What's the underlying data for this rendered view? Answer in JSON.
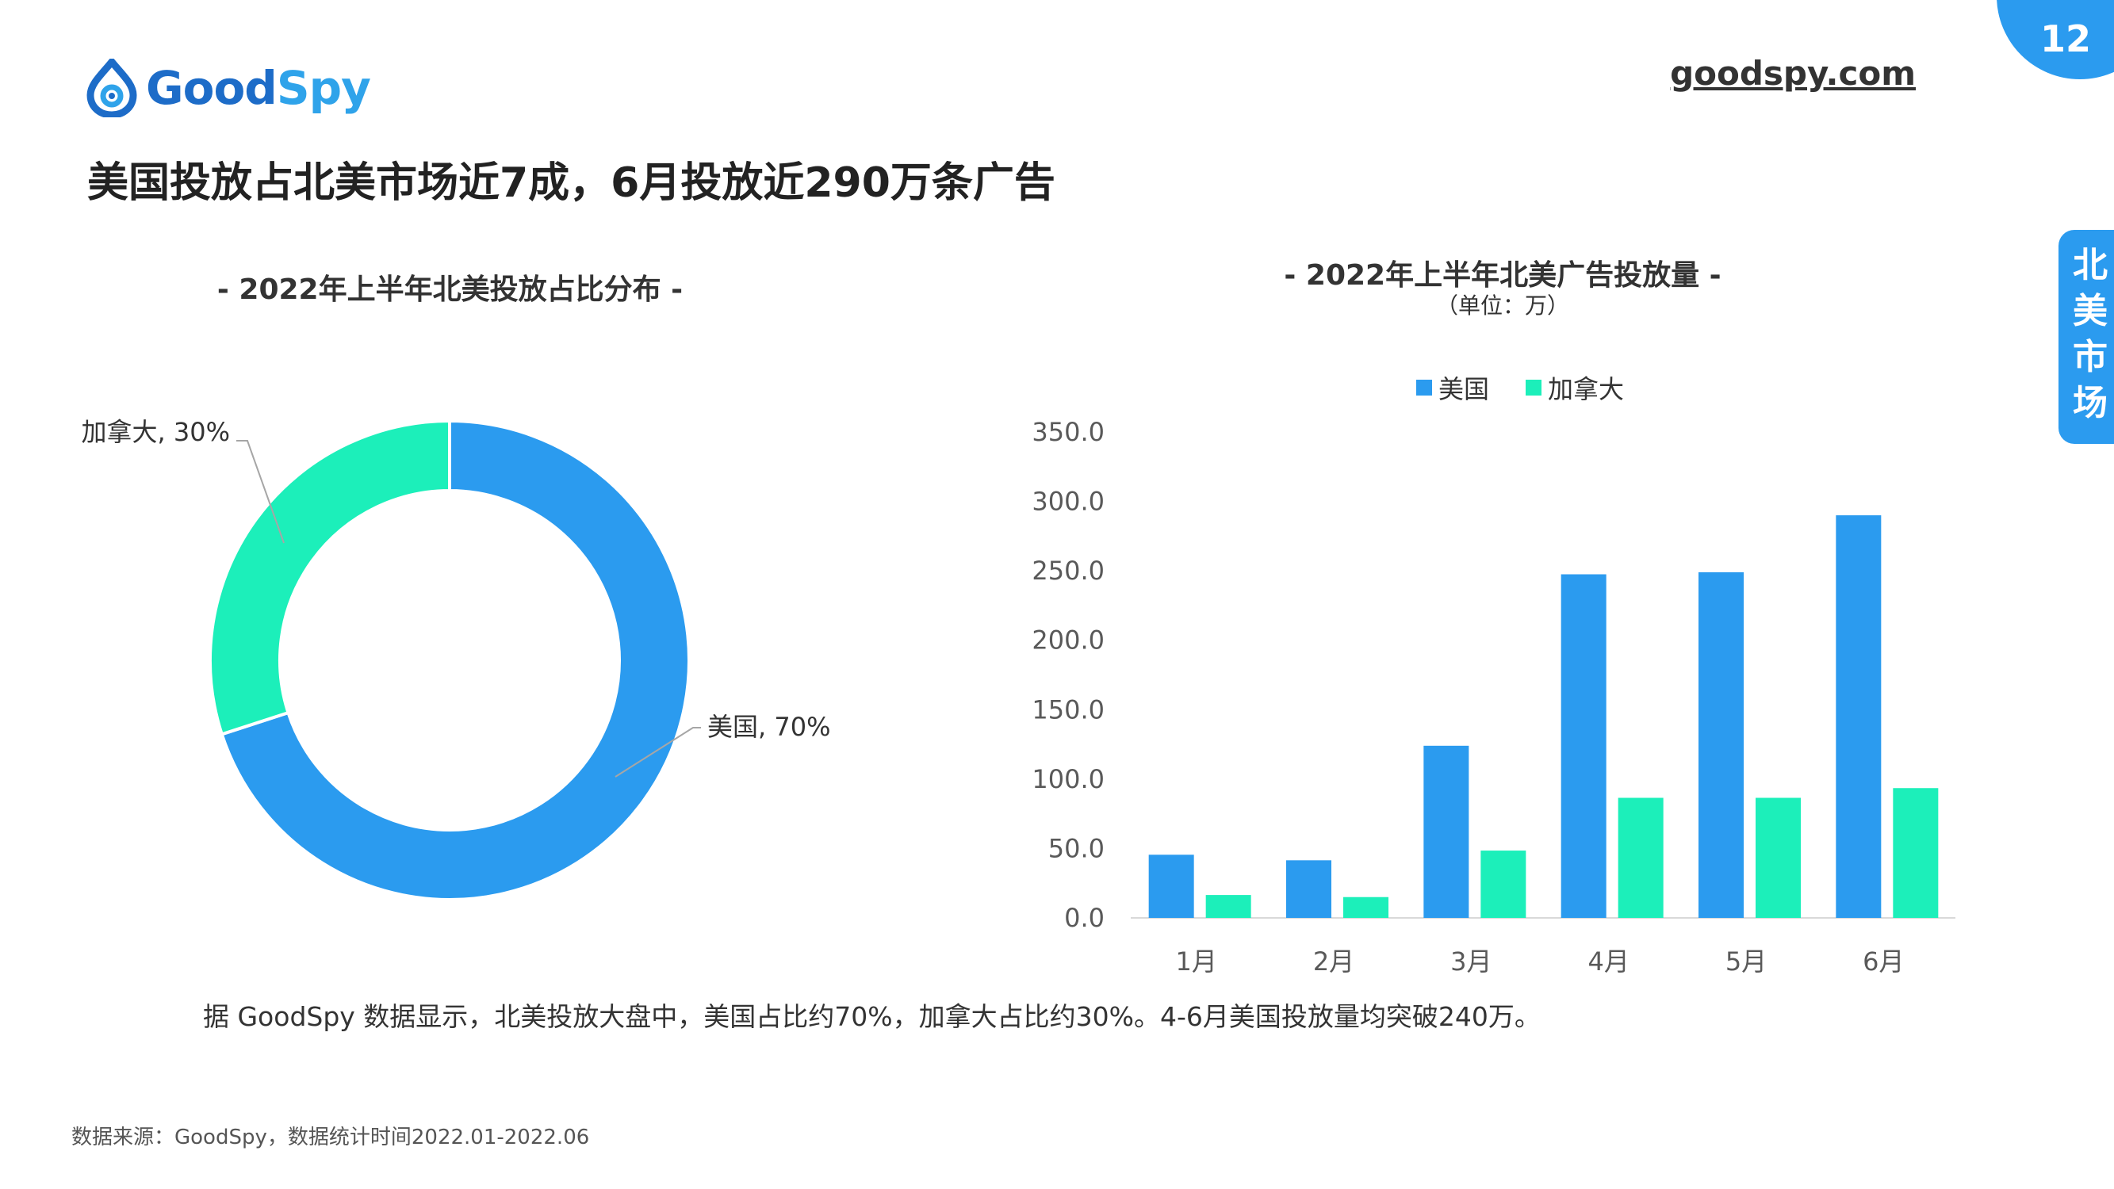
{
  "page": {
    "number": "12",
    "site": "goodspy.com",
    "headline": "美国投放占北美市场近7成，6月投放近290万条广告",
    "side_tab": "北美市场",
    "summary": "据 GoodSpy 数据显示，北美投放大盘中，美国占比约70%，加拿大占比约30%。4-6月美国投放量均突破240万。",
    "source": "数据来源：GoodSpy，数据统计时间2022.01-2022.06"
  },
  "logo": {
    "part1": "Good",
    "part2": "Spy",
    "icon": "goodspy-logo-icon",
    "colors": {
      "dark": "#1d6cc8",
      "light": "#2fa3ea"
    }
  },
  "colors": {
    "us": "#2b9bef",
    "canada": "#1cefba",
    "accent": "#2b9bef"
  },
  "chart_data": [
    {
      "type": "pie",
      "style": "donut",
      "title": "- 2022年上半年北美投放占比分布 -",
      "slices": [
        {
          "label": "美国",
          "value": 70,
          "display": "美国, 70%",
          "color": "#2b9bef"
        },
        {
          "label": "加拿大",
          "value": 30,
          "display": "加拿大, 30%",
          "color": "#1cefba"
        }
      ]
    },
    {
      "type": "bar",
      "title": "- 2022年上半年北美广告投放量 -",
      "subtitle": "（单位：万）",
      "categories": [
        "1月",
        "2月",
        "3月",
        "4月",
        "5月",
        "6月"
      ],
      "series": [
        {
          "name": "美国",
          "color": "#2b9bef",
          "values": [
            45.5,
            41.5,
            124.0,
            247.5,
            249.0,
            290.0
          ]
        },
        {
          "name": "加拿大",
          "color": "#1cefba",
          "values": [
            16.5,
            15.0,
            48.5,
            86.5,
            86.5,
            93.5
          ]
        }
      ],
      "ylim": [
        0,
        350
      ],
      "yticks": [
        "0.0",
        "50.0",
        "100.0",
        "150.0",
        "200.0",
        "250.0",
        "300.0",
        "350.0"
      ],
      "legend": "top",
      "grid": false
    }
  ]
}
